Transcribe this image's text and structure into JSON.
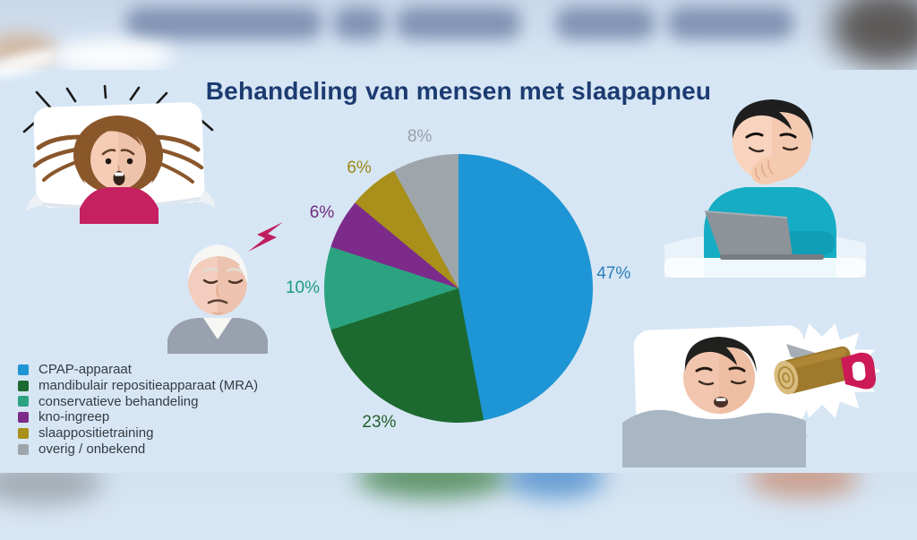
{
  "title": "Behandeling van mensen met slaapapneu",
  "colors": {
    "background": "#D7E6F4",
    "title_text": "#1C3B72",
    "legend_text": "#343B42"
  },
  "chart_data": {
    "type": "pie",
    "title": "Behandeling van mensen met slaapapneu",
    "direction": "clockwise",
    "start_angle_deg": 0,
    "value_suffix": "%",
    "legend_position": "bottom-left",
    "slices": [
      {
        "label": "CPAP-apparaat",
        "value": 47,
        "color": "#1E95D4",
        "label_color": "#2C7FBC"
      },
      {
        "label": "mandibulair repositieapparaat (MRA)",
        "value": 23,
        "color": "#1C6A2F",
        "label_color": "#235F2E"
      },
      {
        "label": "conservatieve behandeling",
        "value": 10,
        "color": "#2BA380",
        "label_color": "#1C9B82"
      },
      {
        "label": "kno-ingreep",
        "value": 6,
        "color": "#7C2B8B",
        "label_color": "#6F2B7E"
      },
      {
        "label": "slaappositietraining",
        "value": 6,
        "color": "#A8901A",
        "label_color": "#9C8716"
      },
      {
        "label": "overig / onbekend",
        "value": 8,
        "color": "#9EA6AC",
        "label_color": "#99A1A8"
      }
    ]
  },
  "illustrations": {
    "top_left": "woman awake in bed, startled by noise",
    "mid_left": "annoyed elderly man with lightning bolt",
    "top_right": "man yawning at laptop",
    "bottom_right": "sleeping man snoring (sawing a log)"
  }
}
